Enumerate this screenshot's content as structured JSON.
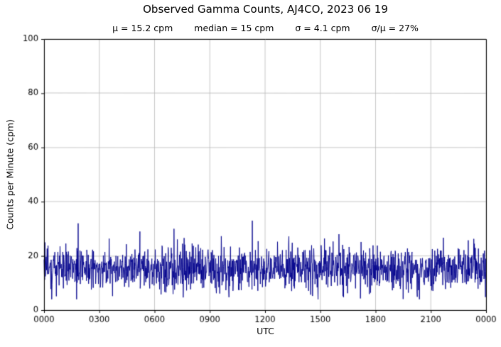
{
  "chart_data": {
    "type": "line",
    "title": "Observed Gamma Counts, AJ4CO, 2023 06 19",
    "stats_items": [
      "μ = 15.2 cpm",
      "median = 15 cpm",
      "σ = 4.1 cpm",
      "σ/μ = 27%"
    ],
    "stats": {
      "mu_cpm": 15.2,
      "median_cpm": 15,
      "sigma_cpm": 4.1,
      "sigma_over_mu_pct": 27
    },
    "xlabel": "UTC",
    "ylabel": "Counts per Minute (cpm)",
    "x_tick_labels": [
      "0000",
      "0300",
      "0600",
      "0900",
      "1200",
      "1500",
      "1800",
      "2100",
      "0000"
    ],
    "x_tick_hours": [
      0,
      3,
      6,
      9,
      12,
      15,
      18,
      21,
      24
    ],
    "y_ticks": [
      0,
      20,
      40,
      60,
      80,
      100
    ],
    "ylim": [
      0,
      100
    ],
    "xlim_hours": [
      0,
      24
    ],
    "grid": true,
    "line_color": "#00008b",
    "grid_color": "#b8b8b8",
    "frame_color": "#000000",
    "series": {
      "name": "observed-gamma-counts",
      "points_per_day": 1440,
      "mean": 15.2,
      "sigma": 4.1,
      "clip_min": 4,
      "clip_max": 34,
      "seed": 20230619,
      "spikes": [
        {
          "hour": 1.85,
          "value": 32
        },
        {
          "hour": 5.2,
          "value": 29
        },
        {
          "hour": 7.05,
          "value": 30
        },
        {
          "hour": 11.3,
          "value": 33
        },
        {
          "hour": 16.0,
          "value": 28
        }
      ]
    }
  }
}
